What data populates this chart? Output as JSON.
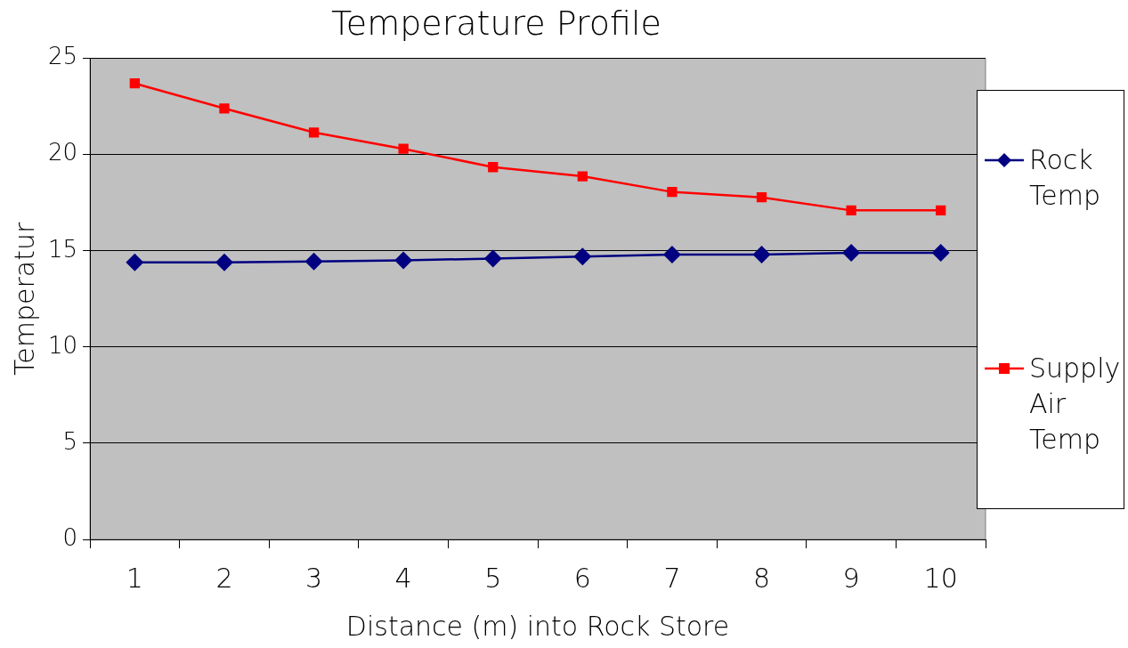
{
  "chart_data": {
    "type": "line",
    "title": "Temperature Profile",
    "xlabel": "Distance (m) into Rock Store",
    "ylabel": "Temperatur",
    "categories": [
      "1",
      "2",
      "3",
      "4",
      "5",
      "6",
      "7",
      "8",
      "9",
      "10"
    ],
    "series": [
      {
        "name": "Rock Temp",
        "color": "#000080",
        "marker": "diamond",
        "values": [
          14.4,
          14.4,
          14.45,
          14.5,
          14.6,
          14.7,
          14.8,
          14.8,
          14.9,
          14.9
        ]
      },
      {
        "name": "Supply Air Temp",
        "color": "#ff0000",
        "marker": "square",
        "values": [
          23.7,
          22.4,
          21.15,
          20.3,
          19.35,
          18.87,
          18.06,
          17.78,
          17.1,
          17.1
        ]
      }
    ],
    "ylim": [
      0,
      25
    ],
    "yticks": [
      0,
      5,
      10,
      15,
      20,
      25
    ],
    "grid": "y",
    "legend": "right",
    "line_style": "solid"
  }
}
